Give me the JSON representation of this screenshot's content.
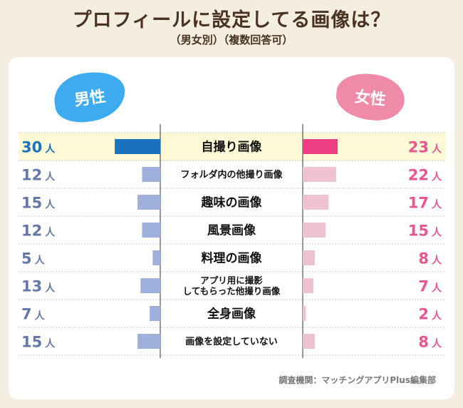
{
  "header": {
    "title": "プロフィールに設定してる画像は？",
    "subtitle": "（男女別）（複数回答可）"
  },
  "legend": {
    "male": "男性",
    "female": "女性"
  },
  "unit": "人",
  "footer": "調査機関：マッチングアプリPlus編集部",
  "colors": {
    "male_top": "#1a72be",
    "male": "#9fb0dd",
    "female_top": "#ee3f83",
    "female": "#eec1d3",
    "male_text": "#6677aa",
    "female_text": "#e9558f",
    "highlight": "#fdf8d6"
  },
  "chart_data": {
    "type": "bar",
    "categories": [
      "自撮り画像",
      "フォルダ内の他撮り画像",
      "趣味の画像",
      "風景画像",
      "料理の画像",
      "アプリ用に撮影\nしてもらった他撮り画像",
      "全身画像",
      "画像を設定していない"
    ],
    "series": [
      {
        "name": "男性",
        "values": [
          30,
          12,
          15,
          12,
          5,
          13,
          7,
          15
        ]
      },
      {
        "name": "女性",
        "values": [
          23,
          22,
          17,
          15,
          8,
          7,
          2,
          8
        ]
      }
    ],
    "highlight_index": 0
  }
}
